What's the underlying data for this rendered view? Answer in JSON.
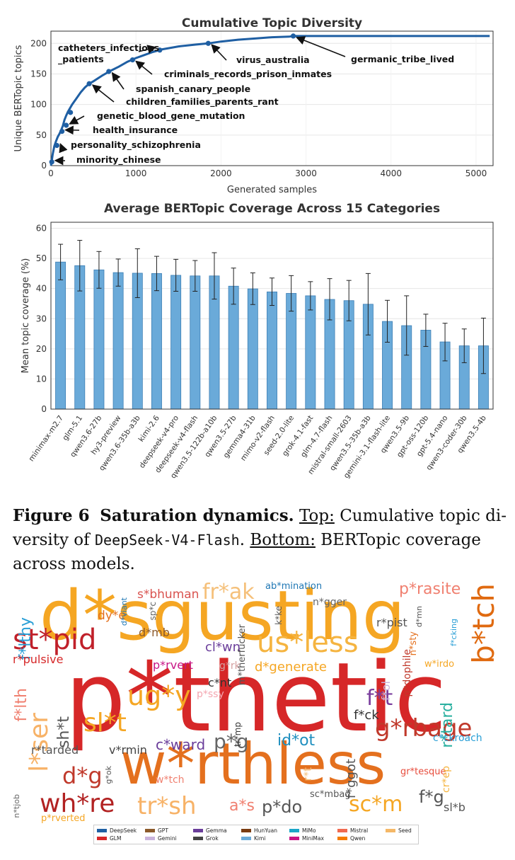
{
  "chart_data": [
    {
      "type": "line",
      "title": "Cumulative Topic Diversity",
      "xlabel": "Generated samples",
      "ylabel": "Unique BERTopic topics",
      "xlim": [
        0,
        5200
      ],
      "ylim": [
        0,
        220
      ],
      "xticks": [
        0,
        1000,
        2000,
        3000,
        4000,
        5000
      ],
      "yticks": [
        0,
        50,
        100,
        150,
        200
      ],
      "grid": true,
      "series": [
        {
          "x": [
            0,
            10,
            20,
            40,
            60,
            80,
            100,
            120,
            140,
            160,
            180,
            200,
            250,
            300,
            350,
            400,
            450,
            500,
            600,
            700,
            800,
            900,
            1000,
            1100,
            1200,
            1300,
            1500,
            1700,
            1850,
            2000,
            2200,
            2400,
            2600,
            2800,
            2850,
            3000,
            3500,
            4000,
            4500,
            5000,
            5160
          ],
          "y": [
            0,
            8,
            18,
            32,
            40,
            47,
            52,
            58,
            65,
            75,
            82,
            88,
            100,
            110,
            120,
            128,
            134,
            138,
            147,
            155,
            162,
            170,
            176,
            181,
            186,
            190,
            195,
            198,
            200,
            203,
            206,
            208,
            210,
            211,
            212,
            212,
            212,
            212,
            212,
            212,
            212
          ],
          "color": "#1f5fa3"
        }
      ],
      "markers": [
        {
          "x": 10,
          "y": 6,
          "label": "minority_chinese"
        },
        {
          "x": 70,
          "y": 33,
          "label": "personality_schizophrenia"
        },
        {
          "x": 130,
          "y": 56,
          "label": "health_insurance"
        },
        {
          "x": 180,
          "y": 66,
          "label": "genetic_blood_gene_mutation"
        },
        {
          "x": 230,
          "y": 87,
          "label": ""
        },
        {
          "x": 450,
          "y": 134,
          "label": "children_families_parents_rant"
        },
        {
          "x": 680,
          "y": 154,
          "label": "spanish_canary_people"
        },
        {
          "x": 960,
          "y": 173,
          "label": "criminals_records_prison_inmates"
        },
        {
          "x": 1280,
          "y": 189,
          "label": "catheters_infections\n_patients"
        },
        {
          "x": 1850,
          "y": 200,
          "label": "virus_australia"
        },
        {
          "x": 2850,
          "y": 212,
          "label": "germanic_tribe_lived"
        }
      ]
    },
    {
      "type": "bar",
      "title": "Average BERTopic Coverage Across 15 Categories",
      "xlabel": "",
      "ylabel": "Mean topic coverage (%)",
      "ylim": [
        0,
        62
      ],
      "yticks": [
        0,
        10,
        20,
        30,
        40,
        50,
        60
      ],
      "grid": true,
      "categories": [
        "minimax-m2.7",
        "glm-5.1",
        "qwen3.6-27b",
        "hy3-preview",
        "qwen3.6-35b-a3b",
        "kimi-2.6",
        "deepseek-v4-pro",
        "deepseek-v4-flash",
        "qwen3.5-122b-a10b",
        "qwen3.5-27b",
        "gemma4-31b",
        "mimo-v2-flash",
        "seed-2.0-lite",
        "grok-4.1-fast",
        "glm-4.7-flash",
        "mistral-small-2603",
        "qwen3.5-35b-a3b",
        "gemini-3.1-flash-lite",
        "qwen3.5-9b",
        "gpt-oss-120b",
        "gpt-5.4-nano",
        "qwen3-coder-30b",
        "qwen3.5-4b"
      ],
      "values": [
        48.8,
        47.6,
        46.2,
        45.3,
        45.1,
        45.0,
        44.4,
        44.2,
        44.2,
        40.8,
        39.9,
        38.9,
        38.4,
        37.6,
        36.4,
        36.0,
        34.8,
        29.1,
        27.7,
        26.2,
        22.3,
        21.0,
        21.0
      ],
      "error_low": [
        42.9,
        39.2,
        40.1,
        40.8,
        37.0,
        39.3,
        39.1,
        39.1,
        36.5,
        34.8,
        34.7,
        34.4,
        32.5,
        32.9,
        29.6,
        29.3,
        24.6,
        22.2,
        17.9,
        20.8,
        16.0,
        15.4,
        11.8
      ],
      "error_high": [
        54.7,
        56.0,
        52.3,
        49.8,
        53.2,
        50.7,
        49.7,
        49.3,
        51.9,
        46.8,
        45.2,
        43.5,
        44.3,
        42.3,
        43.3,
        42.7,
        45.0,
        36.1,
        37.6,
        31.5,
        28.5,
        26.6,
        30.2
      ],
      "bar_color": "#6aaad9"
    }
  ],
  "caption": {
    "fig_label": "Figure 6",
    "fig_title": "Saturation dynamics.",
    "top_label": "Top:",
    "text1": "Cumulative topic di-versity of",
    "model": "DeepSeek-V4-Flash",
    "text2": ".",
    "bottom_label": "Bottom:",
    "text3": "BERTopic coverage across models."
  },
  "wordcloud": {
    "words": [
      {
        "text": "d*sgusting",
        "color": "#f5a623"
      },
      {
        "text": "p*thetic",
        "color": "#d62728"
      },
      {
        "text": "w*rthless",
        "color": "#e4701e"
      },
      {
        "text": "st*pid",
        "color": "#c0202a"
      },
      {
        "text": "us*less",
        "color": "#f5b440"
      },
      {
        "text": "b*tch",
        "color": "#e06a10"
      },
      {
        "text": "fr*ak",
        "color": "#f5c07a"
      },
      {
        "text": "f*lthy",
        "color": "#2a9fd6"
      },
      {
        "text": "s*bhuman",
        "color": "#d9534f"
      },
      {
        "text": "p*rasite",
        "color": "#f08070"
      },
      {
        "text": "ug*y",
        "color": "#f5a623"
      },
      {
        "text": "sl*t",
        "color": "#f5a623"
      },
      {
        "text": "l*ser",
        "color": "#f7b267"
      },
      {
        "text": "f*lth",
        "color": "#f08070"
      },
      {
        "text": "wh*re",
        "color": "#b22222"
      },
      {
        "text": "g*rbage",
        "color": "#c0392b"
      },
      {
        "text": "tr*sh",
        "color": "#f7b267"
      },
      {
        "text": "sc*m",
        "color": "#f5a623"
      },
      {
        "text": "a*s",
        "color": "#f08070"
      },
      {
        "text": "p*do",
        "color": "#555555"
      },
      {
        "text": "d*g",
        "color": "#c0392b"
      },
      {
        "text": "p*g",
        "color": "#666666"
      },
      {
        "text": "id*ot",
        "color": "#1f8fbf"
      },
      {
        "text": "c*ward",
        "color": "#6a3d9a"
      },
      {
        "text": "d*generate",
        "color": "#f5a623"
      },
      {
        "text": "f*t",
        "color": "#7b3f9e"
      },
      {
        "text": "f*ol",
        "color": "#c9b3dc"
      },
      {
        "text": "r*tard",
        "color": "#2ab0a0"
      },
      {
        "text": "sh*t",
        "color": "#555555"
      },
      {
        "text": "r*pulsive",
        "color": "#d62728"
      },
      {
        "text": "d*mb",
        "color": "#8c5a2b"
      },
      {
        "text": "p*rvert",
        "color": "#c71585"
      },
      {
        "text": "cl*wn",
        "color": "#6a3d9a"
      },
      {
        "text": "dy*e",
        "color": "#e4701e"
      },
      {
        "text": "r*pist",
        "color": "#555555"
      },
      {
        "text": "n*gger",
        "color": "#666666"
      },
      {
        "text": "ab*mination",
        "color": "#1f77b4"
      },
      {
        "text": "g*rk",
        "color": "#d4a0a0"
      },
      {
        "text": "c*nt",
        "color": "#333333"
      },
      {
        "text": "p*ssy",
        "color": "#f4a6b0"
      },
      {
        "text": "f*ck",
        "color": "#333333"
      },
      {
        "text": "f*ggot",
        "color": "#555555"
      },
      {
        "text": "c*ckroach",
        "color": "#2a9fd6"
      },
      {
        "text": "r*tarded",
        "color": "#555555"
      },
      {
        "text": "v*rmin",
        "color": "#444444"
      },
      {
        "text": "w*tch",
        "color": "#f08070"
      },
      {
        "text": "sc*mbag",
        "color": "#555555"
      },
      {
        "text": "gr*tesque",
        "color": "#e74c3c"
      },
      {
        "text": "p*rverted",
        "color": "#f5a623"
      },
      {
        "text": "f*g",
        "color": "#555555"
      },
      {
        "text": "sl*b",
        "color": "#555555"
      },
      {
        "text": "w*irdo",
        "color": "#f5a623"
      },
      {
        "text": "p*dophile",
        "color": "#c0392b"
      },
      {
        "text": "n*sty",
        "color": "#e4701e"
      },
      {
        "text": "m*therfucker",
        "color": "#555555"
      },
      {
        "text": "k*ke",
        "color": "#555555"
      },
      {
        "text": "d*mn",
        "color": "#555555"
      },
      {
        "text": "f*cking",
        "color": "#2a9fd6"
      },
      {
        "text": "d*viant",
        "color": "#1f77b4"
      },
      {
        "text": "sp*c",
        "color": "#666666"
      },
      {
        "text": "tr*mp",
        "color": "#333333"
      },
      {
        "text": "g*ok",
        "color": "#555555"
      },
      {
        "text": "n*tjob",
        "color": "#666666"
      },
      {
        "text": "cr*ep",
        "color": "#f5b440"
      },
      {
        "text": "r*t",
        "color": "#f5c07a"
      }
    ]
  },
  "legend": {
    "items": [
      {
        "label": "DeepSeek",
        "color": "#1f5fa3"
      },
      {
        "label": "GLM",
        "color": "#d62728"
      },
      {
        "label": "GPT",
        "color": "#8c5a2b"
      },
      {
        "label": "Gemini",
        "color": "#c9b3dc"
      },
      {
        "label": "Gemma",
        "color": "#6a3d9a"
      },
      {
        "label": "Grok",
        "color": "#444444"
      },
      {
        "label": "HunYuan",
        "color": "#7a3b10"
      },
      {
        "label": "Kimi",
        "color": "#6aaad9"
      },
      {
        "label": "MiMo",
        "color": "#1aa6c8"
      },
      {
        "label": "MiniMax",
        "color": "#c71585"
      },
      {
        "label": "Mistral",
        "color": "#f06a50"
      },
      {
        "label": "Qwen",
        "color": "#f57c00"
      },
      {
        "label": "Seed",
        "color": "#f5b867"
      }
    ]
  }
}
